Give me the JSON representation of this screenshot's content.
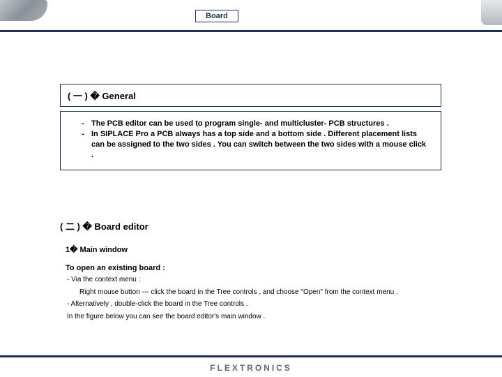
{
  "header": {
    "title": "Board"
  },
  "section1": {
    "title": "( 一 ) � General",
    "bullet1": "The PCB editor can be used to program single- and multicluster- PCB structures .",
    "bullet2": "In SIPLACE Pro a PCB always has a top side and a bottom side . Different placement lists can be assigned to the two sides . You can switch between the two sides with a mouse click ."
  },
  "section2": {
    "title": "( 二 ) � Board editor",
    "sub": "1� Main window",
    "openLabel": "To open an existing board :",
    "line1": "- Via the context menu :",
    "line2": "Right mouse button --- click the board in the Tree controls , and choose \"Open\" from the context menu .",
    "line3": "- Alternatively , double-click the board in the Tree controls .",
    "line4": "In the figure below you can see the board editor's main window ."
  },
  "footer": {
    "logo": "FLEXTRONICS"
  }
}
